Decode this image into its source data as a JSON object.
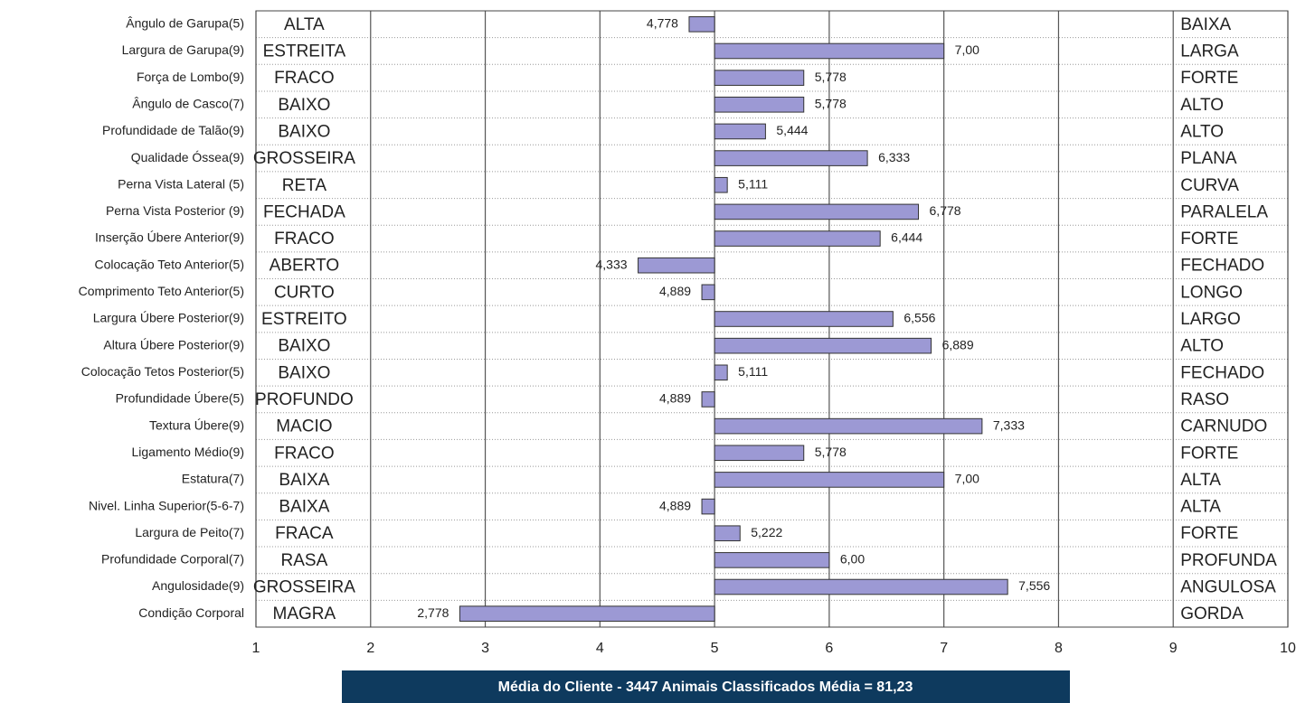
{
  "chart_data": {
    "type": "bar",
    "orientation": "horizontal",
    "base": 5,
    "categories": [
      "Ângulo de Garupa(5)",
      "Largura de Garupa(9)",
      "Força de Lombo(9)",
      "Ângulo de Casco(7)",
      "Profundidade de Talão(9)",
      "Qualidade Óssea(9)",
      "Perna Vista Lateral (5)",
      "Perna Vista Posterior (9)",
      "Inserção Úbere Anterior(9)",
      "Colocação Teto Anterior(5)",
      "Comprimento Teto Anterior(5)",
      "Largura Úbere Posterior(9)",
      "Altura Úbere Posterior(9)",
      "Colocação Tetos Posterior(5)",
      "Profundidade Úbere(5)",
      "Textura Úbere(9)",
      "Ligamento Médio(9)",
      "Estatura(7)",
      "Nivel. Linha Superior(5-6-7)",
      "Largura de Peito(7)",
      "Profundidade Corporal(7)",
      "Angulosidade(9)",
      "Condição Corporal"
    ],
    "values": [
      4.778,
      7.0,
      5.778,
      5.778,
      5.444,
      6.333,
      5.111,
      6.778,
      6.444,
      4.333,
      4.889,
      6.556,
      6.889,
      5.111,
      4.889,
      7.333,
      5.778,
      7.0,
      4.889,
      5.222,
      6.0,
      7.556,
      2.778
    ],
    "value_labels": [
      "4,778",
      "7,00",
      "5,778",
      "5,778",
      "5,444",
      "6,333",
      "5,111",
      "6,778",
      "6,444",
      "4,333",
      "4,889",
      "6,556",
      "6,889",
      "5,111",
      "4,889",
      "7,333",
      "5,778",
      "7,00",
      "4,889",
      "5,222",
      "6,00",
      "7,556",
      "2,778"
    ],
    "low_labels": [
      "ALTA",
      "ESTREITA",
      "FRACO",
      "BAIXO",
      "BAIXO",
      "GROSSEIRA",
      "RETA",
      "FECHADA",
      "FRACO",
      "ABERTO",
      "CURTO",
      "ESTREITO",
      "BAIXO",
      "BAIXO",
      "PROFUNDO",
      "MACIO",
      "FRACO",
      "BAIXA",
      "BAIXA",
      "FRACA",
      "RASA",
      "GROSSEIRA",
      "MAGRA"
    ],
    "high_labels": [
      "BAIXA",
      "LARGA",
      "FORTE",
      "ALTO",
      "ALTO",
      "PLANA",
      "CURVA",
      "PARALELA",
      "FORTE",
      "FECHADO",
      "LONGO",
      "LARGO",
      "ALTO",
      "FECHADO",
      "RASO",
      "CARNUDO",
      "FORTE",
      "ALTA",
      "ALTA",
      "FORTE",
      "PROFUNDA",
      "ANGULOSA",
      "GORDA"
    ],
    "color": "#9c99d4",
    "xlim": [
      1,
      10
    ],
    "xticks": [
      1,
      2,
      3,
      4,
      5,
      6,
      7,
      8,
      9,
      10
    ],
    "grid": true,
    "footer": "Média do Cliente - 3447 Animais Classificados Média = 81,23"
  }
}
